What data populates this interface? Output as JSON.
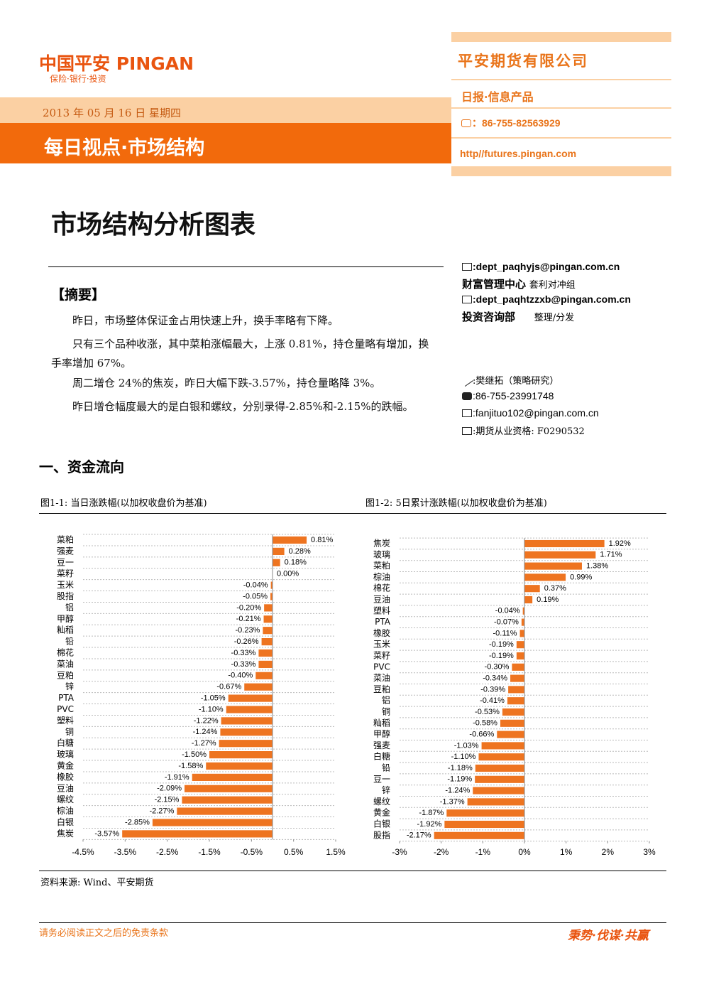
{
  "header": {
    "logo": "中国平安 PINGAN",
    "logo_tagline": "保险·银行·投资",
    "company": "平安期货有限公司",
    "product": "日报·信息产品",
    "phone": "：86-755-82563929",
    "website": "http//futures.pingan.com",
    "date": "2013 年 05 月 16 日 星期四",
    "banner": "每日视点·市场结构"
  },
  "title": "市场结构分析图表",
  "summary": {
    "heading": "【摘要】",
    "paragraphs": [
      "昨日，市场整体保证金占用快速上升，换手率略有下降。",
      "只有三个品种收涨，其中菜粕涨幅最大，上涨 0.81%，持仓量略有增加，换手率增加 67%。",
      "周二增仓 24%的焦炭，昨日大幅下跌-3.57%，持仓量略降 3%。",
      "昨日增仓幅度最大的是白银和螺纹，分别录得-2.85%和-2.15%的跌幅。"
    ]
  },
  "contacts": {
    "email1": ":dept_paqhyjs@pingan.com.cn",
    "dept1": "财富管理中心",
    "team1": "套利对冲组",
    "email2": ":dept_paqhtzzxb@pingan.com.cn",
    "dept2": "投资咨询部",
    "role2": "整理/分发",
    "analyst": ":樊继拓（策略研究）",
    "analyst_phone": ":86-755-23991748",
    "analyst_email": ":fanjituo102@pingan.com.cn",
    "license": ":期货从业资格: F0290532"
  },
  "section_title": "一、资金流向",
  "figures": [
    "图1-1: 当日涨跌幅(以加权收盘价为基准)",
    "图1-2: 5日累计涨跌幅(以加权收盘价为基准)"
  ],
  "chart_data": [
    {
      "type": "hbar",
      "color": "#ee7420",
      "categories": [
        "菜粕",
        "强麦",
        "豆一",
        "菜籽",
        "玉米",
        "股指",
        "铝",
        "甲醇",
        "籼稻",
        "铅",
        "棉花",
        "菜油",
        "豆粕",
        "锌",
        "PTA",
        "PVC",
        "塑料",
        "铜",
        "白糖",
        "玻璃",
        "黄金",
        "橡胶",
        "豆油",
        "螺纹",
        "棕油",
        "白银",
        "焦炭"
      ],
      "values": [
        0.81,
        0.28,
        0.18,
        0.0,
        -0.04,
        -0.05,
        -0.2,
        -0.21,
        -0.23,
        -0.26,
        -0.33,
        -0.33,
        -0.4,
        -0.67,
        -1.05,
        -1.1,
        -1.22,
        -1.24,
        -1.27,
        -1.5,
        -1.58,
        -1.91,
        -2.09,
        -2.15,
        -2.27,
        -2.85,
        -3.57
      ],
      "value_labels": [
        "0.81%",
        "0.28%",
        "0.18%",
        "0.00%",
        "-0.04%",
        "-0.05%",
        "-0.20%",
        "-0.21%",
        "-0.23%",
        "-0.26%",
        "-0.33%",
        "-0.33%",
        "-0.40%",
        "-0.67%",
        "-1.05%",
        "-1.10%",
        "-1.22%",
        "-1.24%",
        "-1.27%",
        "-1.50%",
        "-1.58%",
        "-1.91%",
        "-2.09%",
        "-2.15%",
        "-2.27%",
        "-2.85%",
        "-3.57%"
      ],
      "xlim": [
        -4.5,
        1.5
      ],
      "xticks": [
        {
          "value": -4.5,
          "label": "-4.5%"
        },
        {
          "value": -3.5,
          "label": "-3.5%"
        },
        {
          "value": -2.5,
          "label": "-2.5%"
        },
        {
          "value": -1.5,
          "label": "-1.5%"
        },
        {
          "value": -0.5,
          "label": "-0.5%"
        },
        {
          "value": 0.5,
          "label": "0.5%"
        },
        {
          "value": 1.5,
          "label": "1.5%"
        }
      ]
    },
    {
      "type": "hbar",
      "color": "#ee7420",
      "categories": [
        "焦炭",
        "玻璃",
        "菜粕",
        "棕油",
        "棉花",
        "豆油",
        "塑料",
        "PTA",
        "橡胶",
        "玉米",
        "菜籽",
        "PVC",
        "菜油",
        "豆粕",
        "铝",
        "铜",
        "籼稻",
        "甲醇",
        "强麦",
        "白糖",
        "铅",
        "豆一",
        "锌",
        "螺纹",
        "黄金",
        "白银",
        "股指"
      ],
      "values": [
        1.92,
        1.71,
        1.38,
        0.99,
        0.37,
        0.19,
        -0.04,
        -0.07,
        -0.11,
        -0.19,
        -0.19,
        -0.3,
        -0.34,
        -0.39,
        -0.41,
        -0.53,
        -0.58,
        -0.66,
        -1.03,
        -1.1,
        -1.18,
        -1.19,
        -1.24,
        -1.37,
        -1.87,
        -1.92,
        -2.17
      ],
      "value_labels": [
        "1.92%",
        "1.71%",
        "1.38%",
        "0.99%",
        "0.37%",
        "0.19%",
        "-0.04%",
        "-0.07%",
        "-0.11%",
        "-0.19%",
        "-0.19%",
        "-0.30%",
        "-0.34%",
        "-0.39%",
        "-0.41%",
        "-0.53%",
        "-0.58%",
        "-0.66%",
        "-1.03%",
        "-1.10%",
        "-1.18%",
        "-1.19%",
        "-1.24%",
        "-1.37%",
        "-1.87%",
        "-1.92%",
        "-2.17%"
      ],
      "xlim": [
        -3,
        3
      ],
      "xticks": [
        {
          "value": -3,
          "label": "-3%"
        },
        {
          "value": -2,
          "label": "-2%"
        },
        {
          "value": -1,
          "label": "-1%"
        },
        {
          "value": 0,
          "label": "0%"
        },
        {
          "value": 1,
          "label": "1%"
        },
        {
          "value": 2,
          "label": "2%"
        },
        {
          "value": 3,
          "label": "3%"
        }
      ]
    }
  ],
  "source": "资料来源: Wind、平安期货",
  "footer": {
    "disclaimer": "请务必阅读正文之后的免责条款",
    "slogan": "秉势·伐谋·共赢"
  }
}
